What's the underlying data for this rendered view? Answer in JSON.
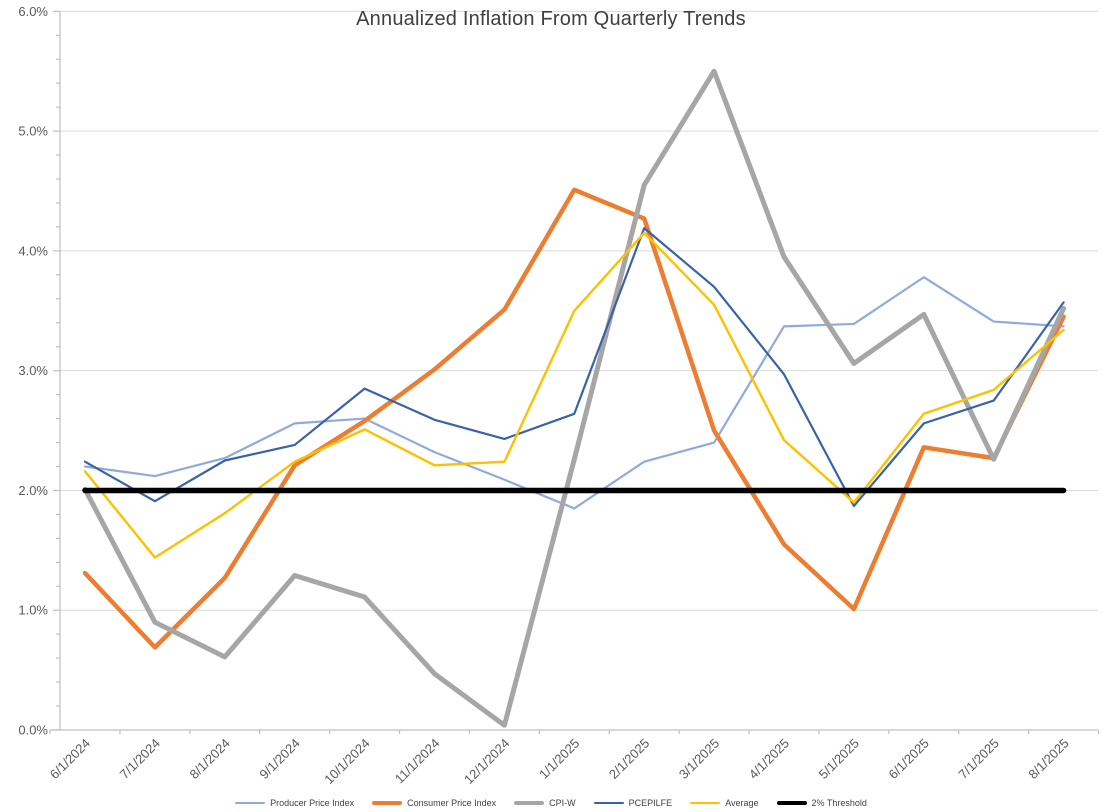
{
  "chart_data": {
    "type": "line",
    "title": "Annualized Inflation From Quarterly Trends",
    "legend_position": "bottom",
    "grid": "horizontal-major",
    "style": {
      "grid_color": "#D9D9D9",
      "axis_color": "#BFBFBF",
      "tick_text_color": "#595959",
      "title_color": "#3f3f3f"
    },
    "categories": [
      "6/1/2024",
      "7/1/2024",
      "8/1/2024",
      "9/1/2024",
      "10/1/2024",
      "11/1/2024",
      "12/1/2024",
      "1/1/2025",
      "2/1/2025",
      "3/1/2025",
      "4/1/2025",
      "5/1/2025",
      "6/1/2025",
      "7/1/2025",
      "8/1/2025"
    ],
    "y_axis": {
      "min": 0,
      "max": 6,
      "major_step": 1.0,
      "minor_tick_step": 0.2,
      "tick_labels": [
        "0.0%",
        "1.0%",
        "2.0%",
        "3.0%",
        "4.0%",
        "5.0%",
        "6.0%"
      ]
    },
    "series": [
      {
        "name": "Producer Price Index",
        "color": "#8FAADC",
        "width": 2.2,
        "values": [
          2.2,
          2.12,
          2.27,
          2.56,
          2.6,
          2.32,
          2.09,
          1.85,
          2.24,
          2.4,
          3.37,
          3.39,
          3.78,
          3.41,
          3.37
        ]
      },
      {
        "name": "Consumer Price Index",
        "color": "#ED7D31",
        "width": 4.5,
        "values": [
          1.31,
          0.69,
          1.27,
          2.21,
          2.58,
          3.01,
          3.51,
          4.51,
          4.27,
          2.5,
          1.55,
          1.01,
          2.36,
          2.27,
          3.45
        ]
      },
      {
        "name": "CPI-W",
        "color": "#A6A6A6",
        "width": 5,
        "values": [
          2.01,
          0.9,
          0.61,
          1.29,
          1.11,
          0.47,
          0.04,
          2.26,
          4.55,
          5.5,
          3.95,
          3.06,
          3.47,
          2.26,
          3.52
        ]
      },
      {
        "name": "PCEPILFE",
        "color": "#3A62A9",
        "width": 2.2,
        "values": [
          2.24,
          1.91,
          2.25,
          2.38,
          2.85,
          2.59,
          2.43,
          2.64,
          4.19,
          3.7,
          2.97,
          1.87,
          2.56,
          2.75,
          3.57
        ]
      },
      {
        "name": "Average",
        "color": "#FFC000",
        "width": 2.4,
        "values": [
          2.16,
          1.44,
          1.81,
          2.24,
          2.51,
          2.21,
          2.24,
          3.5,
          4.15,
          3.55,
          2.42,
          1.9,
          2.64,
          2.84,
          3.34
        ]
      },
      {
        "name": "2% Threshold",
        "color": "#000000",
        "width": 5.5,
        "values": [
          2.0,
          2.0,
          2.0,
          2.0,
          2.0,
          2.0,
          2.0,
          2.0,
          2.0,
          2.0,
          2.0,
          2.0,
          2.0,
          2.0,
          2.0
        ]
      }
    ]
  }
}
